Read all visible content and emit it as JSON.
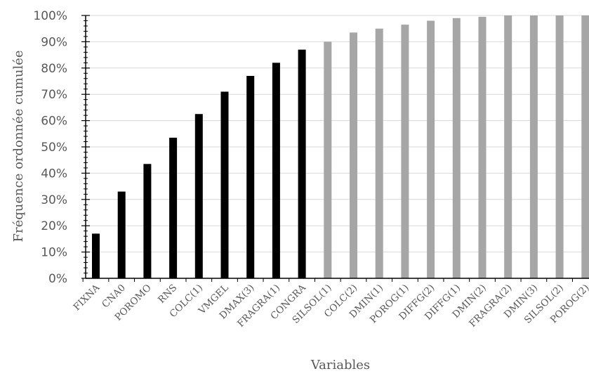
{
  "chart_data": {
    "type": "bar",
    "title": "",
    "xlabel": "Variables",
    "ylabel": "Fréquence ordonnée cumulée",
    "ylim": [
      0,
      100
    ],
    "y_ticks": [
      "0%",
      "10%",
      "20%",
      "30%",
      "40%",
      "50%",
      "60%",
      "70%",
      "80%",
      "90%",
      "100%"
    ],
    "grid": true,
    "categories": [
      "FIXNA",
      "CNA0",
      "POROMO",
      "RNS",
      "COLC(1)",
      "VMGEL",
      "DMAX(3)",
      "FRAGRA(1)",
      "CONGRA",
      "SILSOL(1)",
      "COLC(2)",
      "DMIN(1)",
      "POROG(1)",
      "DIFFG(2)",
      "DIFFG(1)",
      "DMIN(2)",
      "FRAGRA(2)",
      "DMIN(3)",
      "SILSOL(2)",
      "POROG(2)"
    ],
    "values": [
      17,
      33,
      43.5,
      53.5,
      62.5,
      71,
      77,
      82,
      87,
      90,
      93.5,
      95,
      96.5,
      98,
      99,
      99.5,
      100,
      100,
      100,
      100
    ],
    "colors": {
      "selected": "#000000",
      "unselected": "#a6a6a6",
      "grid": "#d9d9d9",
      "axis": "#000000"
    },
    "selected_count": 9
  }
}
